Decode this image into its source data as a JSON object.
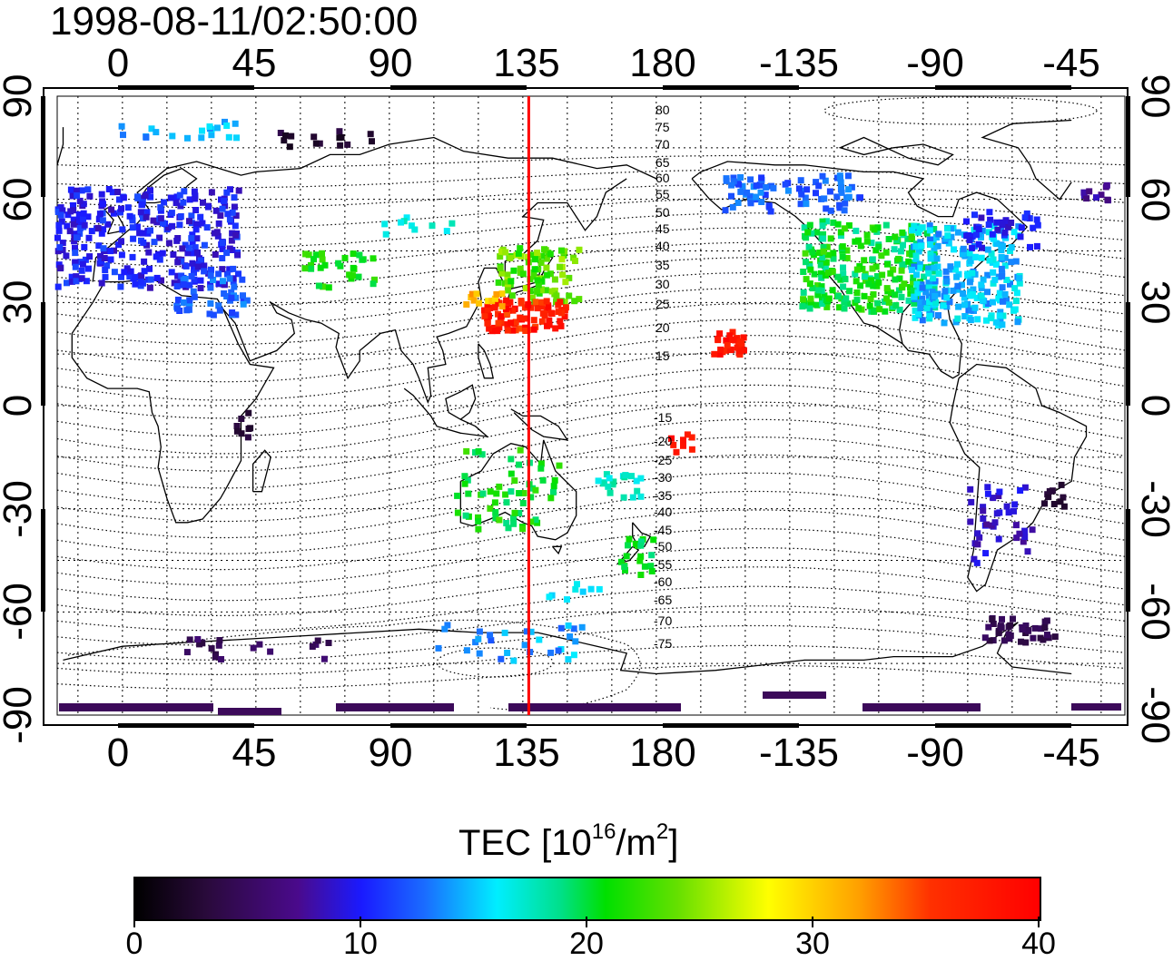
{
  "title": "1998-08-11/02:50:00",
  "map": {
    "lon_tick_labels": [
      "0",
      "45",
      "90",
      "135",
      "180",
      "-135",
      "-90",
      "-45"
    ],
    "lat_tick_labels_left": [
      "90",
      "60",
      "30",
      "0",
      "-30",
      "-60",
      "-90"
    ],
    "lat_tick_labels_right": [
      "90",
      "60",
      "30",
      "0",
      "-30",
      "-60",
      "-90"
    ],
    "meridian_line_lon": 137,
    "meridian_line_color": "#ff0000",
    "contour_labels_north": [
      "80",
      "75",
      "70",
      "65",
      "60",
      "55",
      "50",
      "45",
      "40",
      "35",
      "30",
      "25",
      "20",
      "15"
    ],
    "contour_labels_south": [
      "-15",
      "-20",
      "-25",
      "-30",
      "-35",
      "-40",
      "-45",
      "-50",
      "-55",
      "-60",
      "-65",
      "-70",
      "-75"
    ]
  },
  "colorbar": {
    "title_prefix": "TEC  [10",
    "title_exp1": "16",
    "title_mid": "/m",
    "title_exp2": "2",
    "title_suffix": "]",
    "tick_labels": [
      "0",
      "10",
      "20",
      "30",
      "40"
    ],
    "range": [
      0,
      40
    ]
  }
}
